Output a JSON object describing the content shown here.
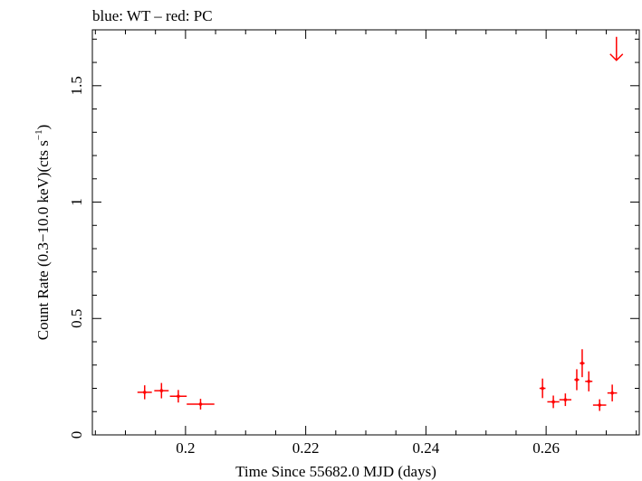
{
  "chart_data": {
    "type": "scatter",
    "title": "blue: WT – red: PC",
    "xlabel": "Time Since 55682.0 MJD (days)",
    "ylabel_main": "Count Rate (0.3−10.0 keV)(cts s",
    "ylabel_sup": "−1",
    "ylabel_end": ")",
    "xlim": [
      0.1845,
      0.2755
    ],
    "ylim": [
      0,
      1.74
    ],
    "x_ticks": [
      0.2,
      0.22,
      0.24,
      0.26
    ],
    "x_tick_labels": [
      "0.2",
      "0.22",
      "0.24",
      "0.26"
    ],
    "y_ticks": [
      0,
      0.5,
      1,
      1.5
    ],
    "y_tick_labels": [
      "0",
      "0.5",
      "1",
      "1.5"
    ],
    "grid": false,
    "colors": {
      "WT": "#0000ff",
      "PC": "#ff0000",
      "axis": "#000000"
    },
    "series": [
      {
        "name": "PC",
        "color": "#ff0000",
        "points": [
          {
            "x": 0.1932,
            "xerr": 0.0012,
            "y": 0.183,
            "yerr": 0.03
          },
          {
            "x": 0.196,
            "xerr": 0.0012,
            "y": 0.19,
            "yerr": 0.033
          },
          {
            "x": 0.1988,
            "xerr": 0.0014,
            "y": 0.166,
            "yerr": 0.027
          },
          {
            "x": 0.2025,
            "xerr": 0.0023,
            "y": 0.132,
            "yerr": 0.023
          },
          {
            "x": 0.2594,
            "xerr": 0.0005,
            "y": 0.2,
            "yerr": 0.042
          },
          {
            "x": 0.2612,
            "xerr": 0.001,
            "y": 0.142,
            "yerr": 0.027
          },
          {
            "x": 0.2632,
            "xerr": 0.001,
            "y": 0.151,
            "yerr": 0.027
          },
          {
            "x": 0.2651,
            "xerr": 0.0004,
            "y": 0.237,
            "yerr": 0.045
          },
          {
            "x": 0.266,
            "xerr": 0.0004,
            "y": 0.308,
            "yerr": 0.06
          },
          {
            "x": 0.2671,
            "xerr": 0.0006,
            "y": 0.23,
            "yerr": 0.043
          },
          {
            "x": 0.2689,
            "xerr": 0.0011,
            "y": 0.128,
            "yerr": 0.025
          },
          {
            "x": 0.271,
            "xerr": 0.0008,
            "y": 0.18,
            "yerr": 0.036
          }
        ],
        "upper_limits": [
          {
            "x": 0.2717,
            "y": 1.64
          }
        ]
      }
    ]
  }
}
